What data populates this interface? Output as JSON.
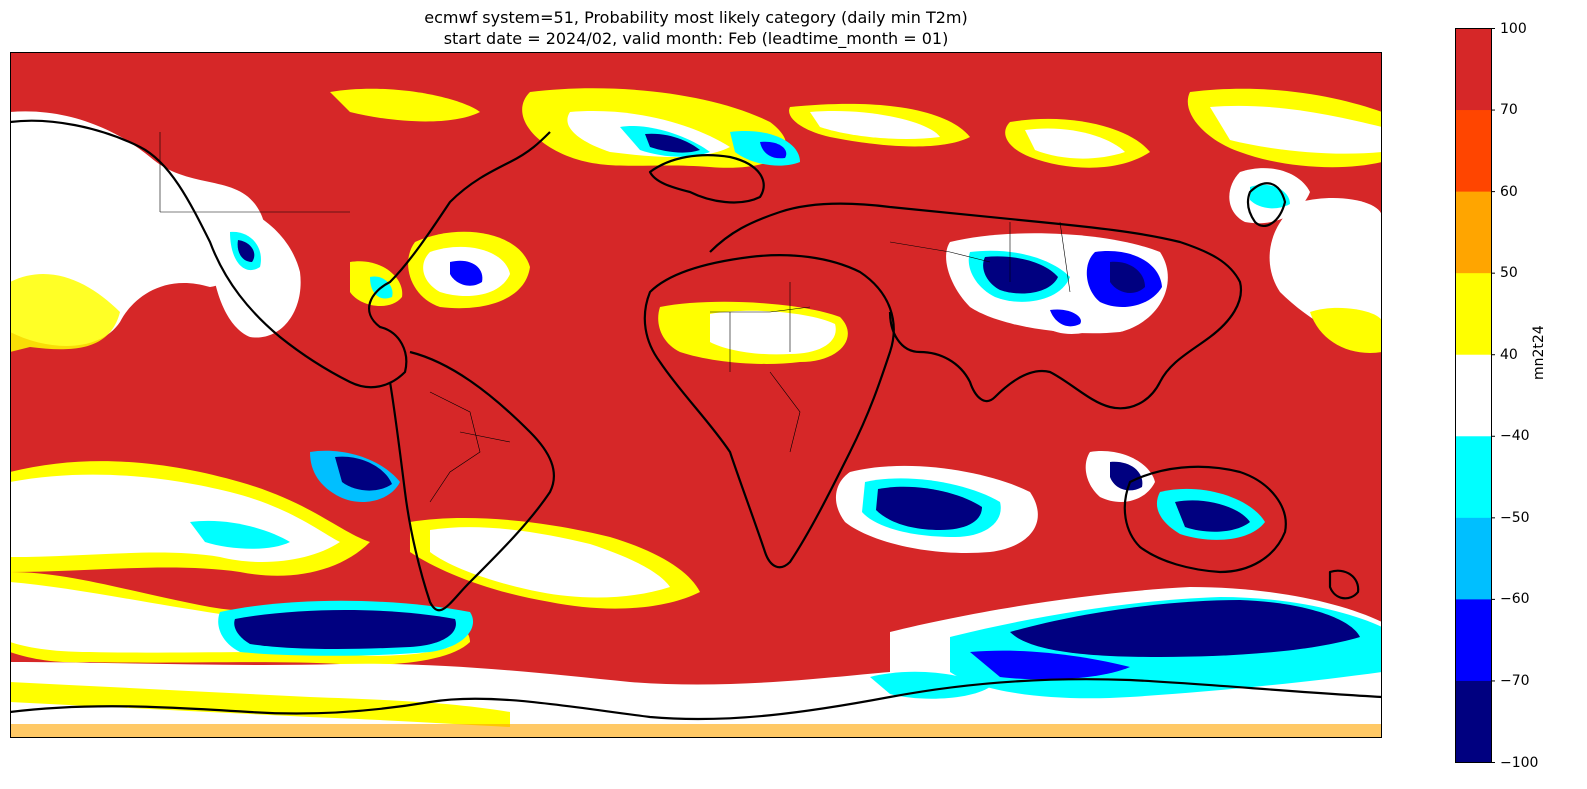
{
  "title_line1": "ecmwf system=51, Probability most likely category (daily min T2m)",
  "title_line2": "start date = 2024/02, valid month: Feb (leadtime_month = 01)",
  "colorbar": {
    "label": "mn2t24",
    "ticks": [
      "100",
      "70",
      "60",
      "50",
      "40",
      "−40",
      "−50",
      "−60",
      "−70",
      "−100"
    ],
    "bands": [
      {
        "range": "70 to 100",
        "color": "#d62728"
      },
      {
        "range": "60 to 70",
        "color": "#ff4500"
      },
      {
        "range": "50 to 60",
        "color": "#ffa500"
      },
      {
        "range": "40 to 50",
        "color": "#ffff00"
      },
      {
        "range": "-40 to 40",
        "color": "#ffffff"
      },
      {
        "range": "-50 to -40",
        "color": "#00ffff"
      },
      {
        "range": "-60 to -50",
        "color": "#00bfff"
      },
      {
        "range": "-70 to -60",
        "color": "#0000ff"
      },
      {
        "range": "-100 to -70",
        "color": "#000080"
      }
    ]
  },
  "map": {
    "projection": "PlateCarree",
    "extent": [
      -180,
      180,
      -90,
      90
    ],
    "background_category_color": "#d62728",
    "coastline_color": "#000000"
  }
}
